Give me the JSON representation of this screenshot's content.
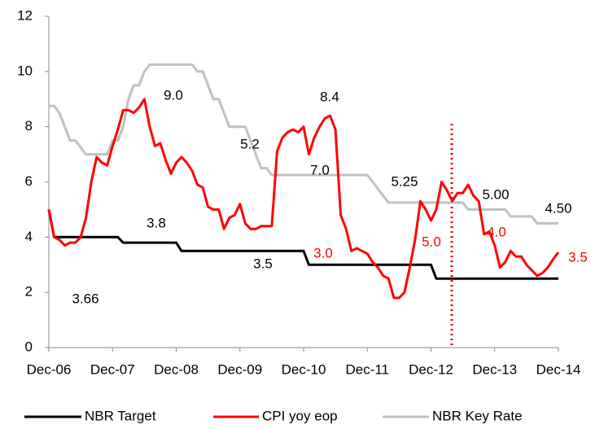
{
  "chart_data": {
    "type": "line",
    "categories": [
      "Dec-06",
      null,
      null,
      null,
      null,
      null,
      null,
      null,
      null,
      null,
      null,
      null,
      "Dec-07",
      null,
      null,
      null,
      null,
      null,
      null,
      null,
      null,
      null,
      null,
      null,
      "Dec-08",
      null,
      null,
      null,
      null,
      null,
      null,
      null,
      null,
      null,
      null,
      null,
      "Dec-09",
      null,
      null,
      null,
      null,
      null,
      null,
      null,
      null,
      null,
      null,
      null,
      "Dec-10",
      null,
      null,
      null,
      null,
      null,
      null,
      null,
      null,
      null,
      null,
      null,
      "Dec-11",
      null,
      null,
      null,
      null,
      null,
      null,
      null,
      null,
      null,
      null,
      null,
      "Dec-12",
      null,
      null,
      null,
      null,
      null,
      null,
      null,
      null,
      null,
      null,
      null,
      "Dec-13",
      null,
      null,
      null,
      null,
      null,
      null,
      null,
      null,
      null,
      null,
      null,
      "Dec-14"
    ],
    "series": [
      {
        "name": "NBR Target",
        "color": "#000000",
        "values": [
          5.0,
          4.0,
          4.0,
          4.0,
          4.0,
          4.0,
          4.0,
          4.0,
          4.0,
          4.0,
          4.0,
          4.0,
          4.0,
          4.0,
          3.8,
          3.8,
          3.8,
          3.8,
          3.8,
          3.8,
          3.8,
          3.8,
          3.8,
          3.8,
          3.8,
          3.5,
          3.5,
          3.5,
          3.5,
          3.5,
          3.5,
          3.5,
          3.5,
          3.5,
          3.5,
          3.5,
          3.5,
          3.5,
          3.5,
          3.5,
          3.5,
          3.5,
          3.5,
          3.5,
          3.5,
          3.5,
          3.5,
          3.5,
          3.5,
          3.0,
          3.0,
          3.0,
          3.0,
          3.0,
          3.0,
          3.0,
          3.0,
          3.0,
          3.0,
          3.0,
          3.0,
          3.0,
          3.0,
          3.0,
          3.0,
          3.0,
          3.0,
          3.0,
          3.0,
          3.0,
          3.0,
          3.0,
          3.0,
          2.5,
          2.5,
          2.5,
          2.5,
          2.5,
          2.5,
          2.5,
          2.5,
          2.5,
          2.5,
          2.5,
          2.5,
          2.5,
          2.5,
          2.5,
          2.5,
          2.5,
          2.5,
          2.5,
          2.5,
          2.5,
          2.5,
          2.5,
          2.5
        ]
      },
      {
        "name": "CPI yoy eop",
        "color": "#ff0000",
        "values": [
          5.0,
          4.0,
          3.9,
          3.7,
          3.8,
          3.8,
          4.0,
          4.7,
          6.0,
          6.9,
          6.7,
          6.6,
          7.3,
          7.9,
          8.6,
          8.6,
          8.5,
          8.7,
          9.0,
          8.0,
          7.3,
          7.4,
          6.8,
          6.3,
          6.7,
          6.9,
          6.7,
          6.4,
          5.9,
          5.8,
          5.1,
          5.0,
          5.0,
          4.3,
          4.7,
          4.8,
          5.2,
          4.5,
          4.3,
          4.3,
          4.4,
          4.4,
          4.4,
          7.1,
          7.6,
          7.8,
          7.9,
          7.8,
          8.0,
          7.0,
          7.6,
          8.0,
          8.3,
          8.4,
          7.9,
          4.8,
          4.3,
          3.5,
          3.6,
          3.5,
          3.4,
          3.1,
          2.9,
          2.6,
          2.5,
          1.8,
          1.8,
          2.0,
          2.9,
          3.9,
          5.3,
          5.0,
          4.6,
          5.0,
          6.0,
          5.7,
          5.3,
          5.6,
          5.6,
          5.9,
          5.5,
          5.3,
          4.1,
          4.2,
          3.7,
          2.9,
          3.1,
          3.5,
          3.3,
          3.3,
          3.0,
          2.8,
          2.6,
          2.7,
          2.9,
          3.2,
          3.45
        ]
      },
      {
        "name": "NBR Key Rate",
        "color": "#c0c0c0",
        "values": [
          8.75,
          8.75,
          8.5,
          8.0,
          7.5,
          7.5,
          7.25,
          7.0,
          7.0,
          7.0,
          7.0,
          7.0,
          7.5,
          7.5,
          8.0,
          9.0,
          9.5,
          9.5,
          10.0,
          10.25,
          10.25,
          10.25,
          10.25,
          10.25,
          10.25,
          10.25,
          10.25,
          10.25,
          10.0,
          10.0,
          9.5,
          9.0,
          9.0,
          8.5,
          8.0,
          8.0,
          8.0,
          8.0,
          7.5,
          7.0,
          6.5,
          6.5,
          6.25,
          6.25,
          6.25,
          6.25,
          6.25,
          6.25,
          6.25,
          6.25,
          6.25,
          6.25,
          6.25,
          6.25,
          6.25,
          6.25,
          6.25,
          6.25,
          6.25,
          6.25,
          6.25,
          6.0,
          5.75,
          5.5,
          5.25,
          5.25,
          5.25,
          5.25,
          5.25,
          5.25,
          5.25,
          5.25,
          5.25,
          5.25,
          5.25,
          5.25,
          5.25,
          5.25,
          5.25,
          5.0,
          5.0,
          5.0,
          5.0,
          5.0,
          5.0,
          5.0,
          5.0,
          4.75,
          4.75,
          4.75,
          4.75,
          4.75,
          4.5,
          4.5,
          4.5,
          4.5,
          4.5
        ]
      }
    ],
    "annotations": [
      {
        "text": "3.66",
        "color": "#000000"
      },
      {
        "text": "3.8",
        "color": "#000000"
      },
      {
        "text": "9.0",
        "color": "#000000"
      },
      {
        "text": "5.2",
        "color": "#000000"
      },
      {
        "text": "8.4",
        "color": "#000000"
      },
      {
        "text": "7.0",
        "color": "#000000"
      },
      {
        "text": "3.5",
        "color": "#000000"
      },
      {
        "text": "3.0",
        "color": "#ff0000"
      },
      {
        "text": "5.25",
        "color": "#000000"
      },
      {
        "text": "5.0",
        "color": "#ff0000"
      },
      {
        "text": "5.00",
        "color": "#000000"
      },
      {
        "text": "4.0",
        "color": "#ff0000"
      },
      {
        "text": "4.50",
        "color": "#000000"
      },
      {
        "text": "3.5",
        "color": "#ff0000"
      }
    ],
    "ylim": [
      0,
      12
    ],
    "yticks": [
      0,
      2,
      4,
      6,
      8,
      10,
      12
    ],
    "grid": false,
    "legend": "bottom"
  }
}
